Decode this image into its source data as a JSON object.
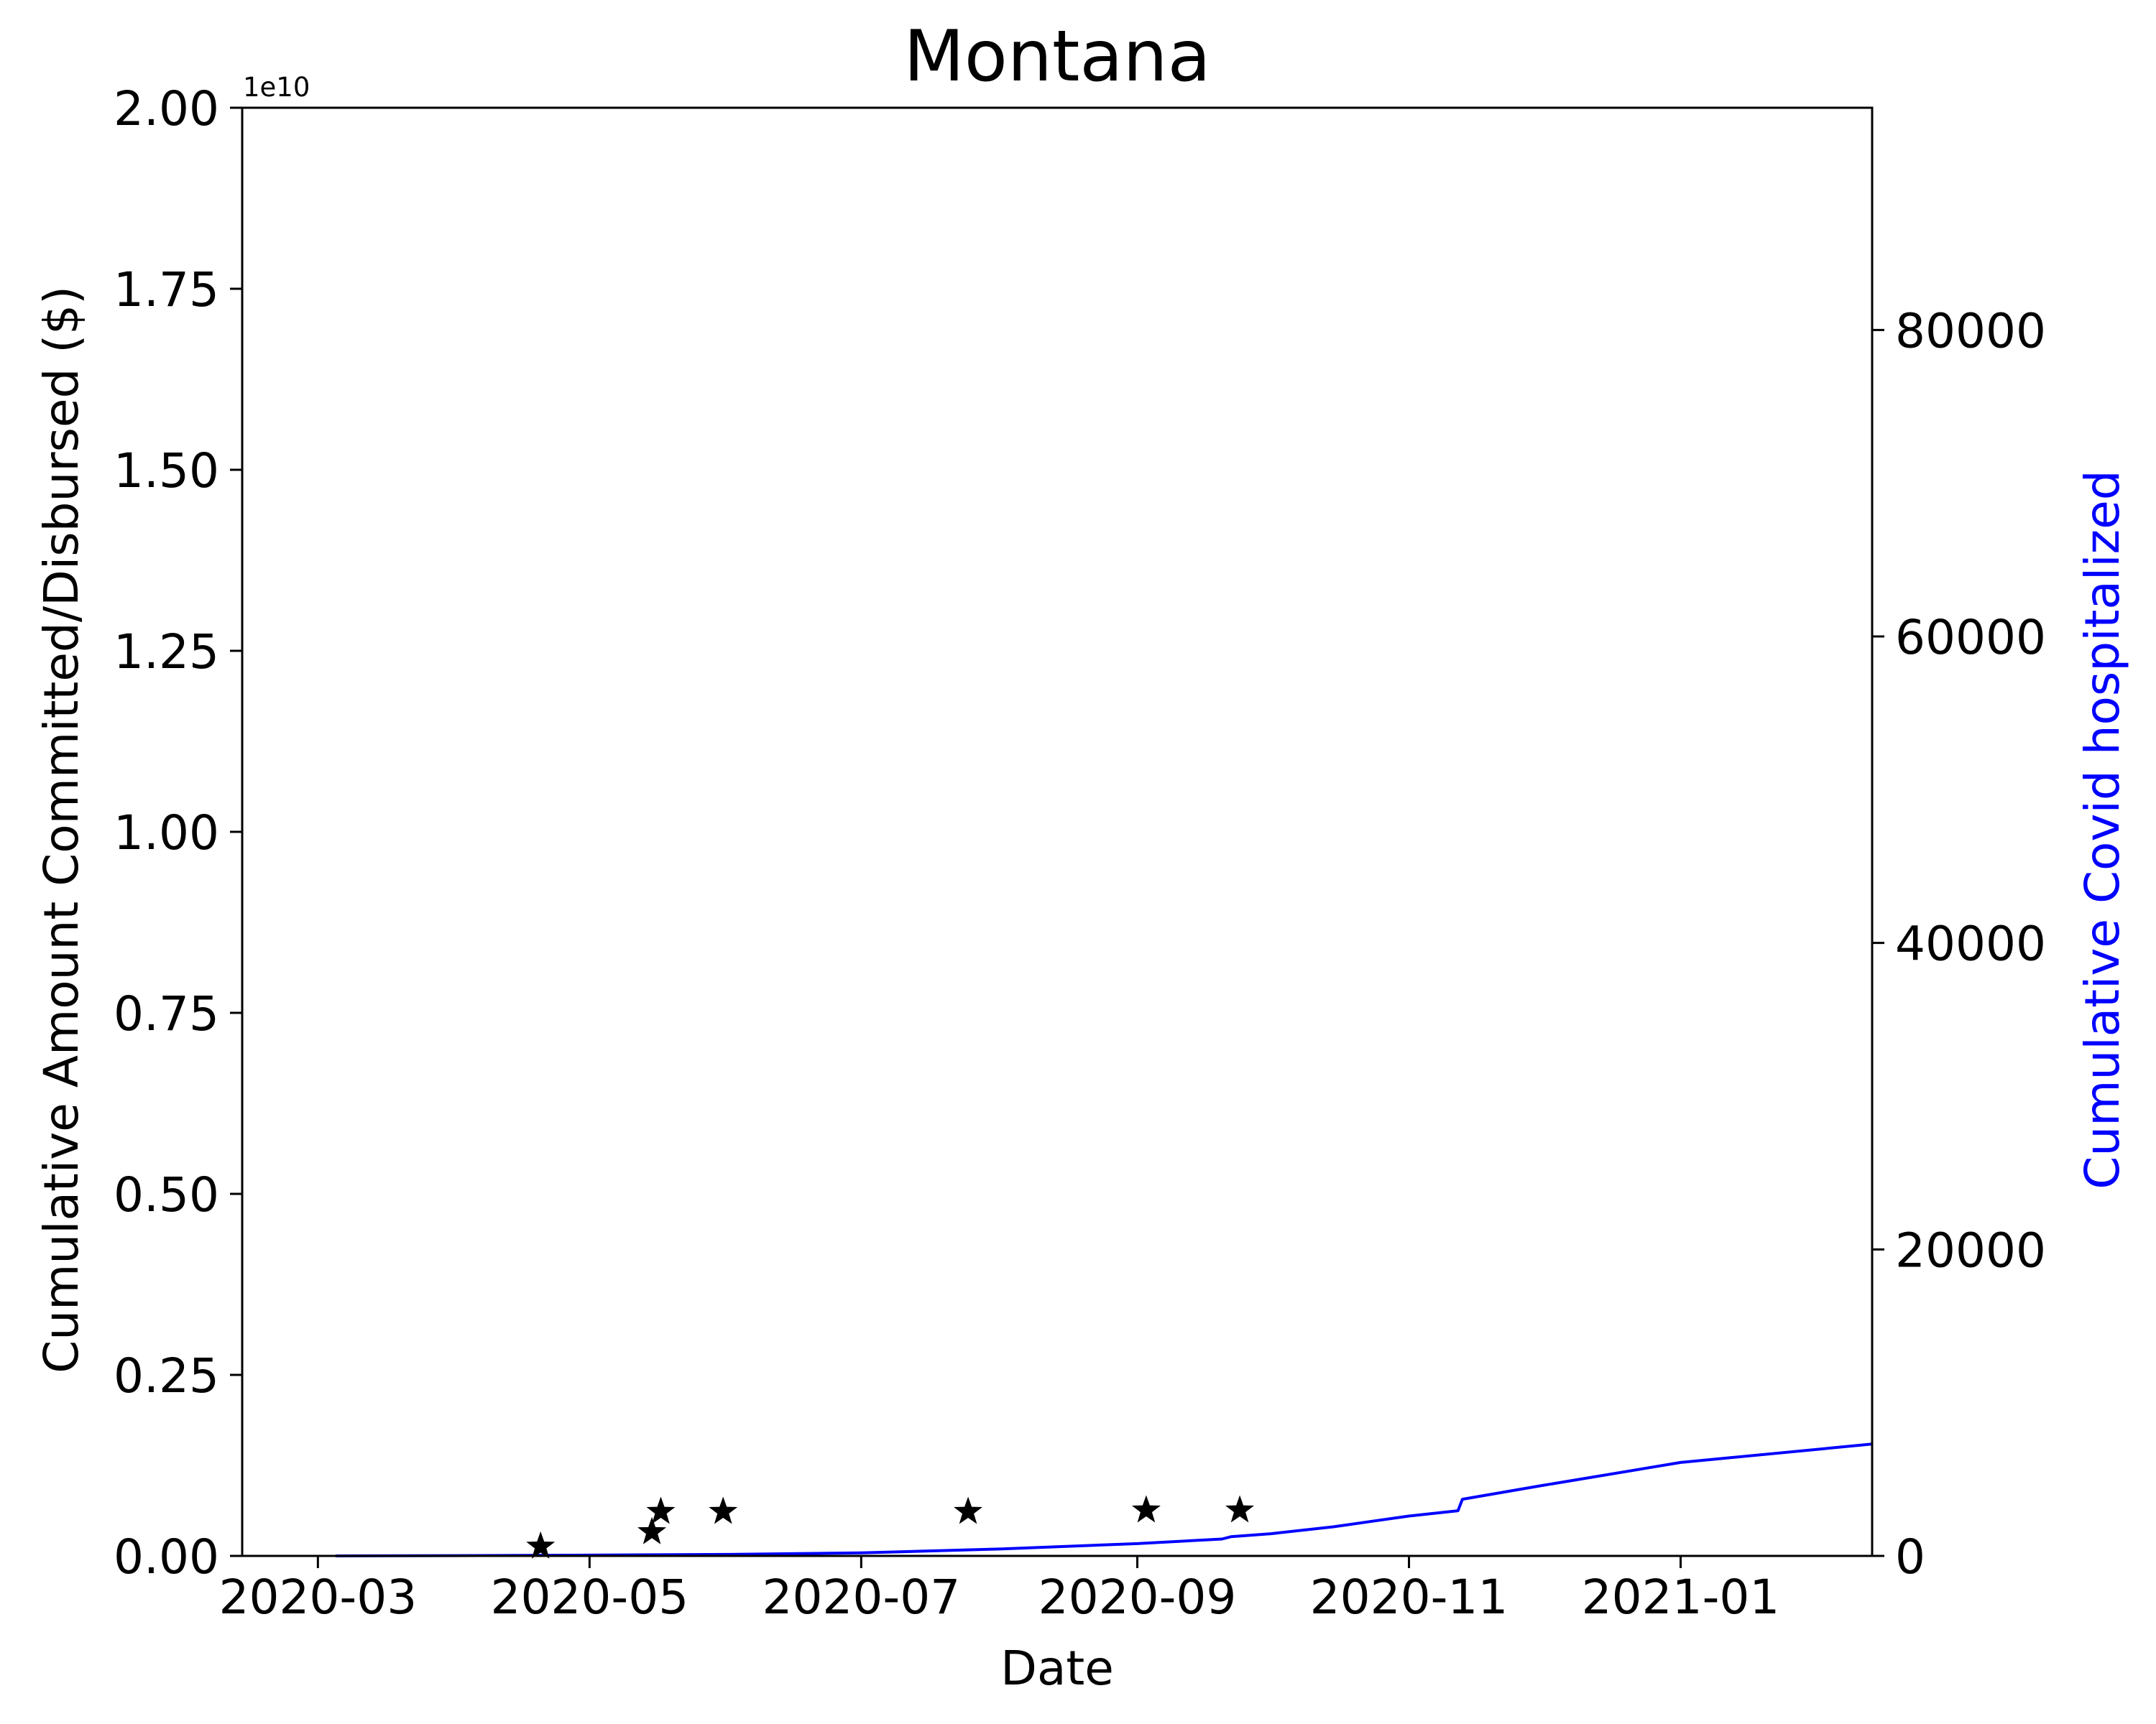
{
  "chart_data": {
    "type": "line",
    "title": "Montana",
    "xlabel": "Date",
    "ylabel": "Cumulative Amount Committed/Disbursed ($)",
    "ylabel_right": "Cumulative Covid hospitalized",
    "y_offset_label": "1e10",
    "xlim": [
      "2020-02-13",
      "2021-02-13"
    ],
    "ylim": [
      0,
      2.0
    ],
    "ylim_right": [
      0,
      94500
    ],
    "x_ticks": [
      {
        "date": "2020-03-01",
        "label": "2020-03"
      },
      {
        "date": "2020-05-01",
        "label": "2020-05"
      },
      {
        "date": "2020-07-01",
        "label": "2020-07"
      },
      {
        "date": "2020-09-01",
        "label": "2020-09"
      },
      {
        "date": "2020-11-01",
        "label": "2020-11"
      },
      {
        "date": "2021-01-01",
        "label": "2021-01"
      }
    ],
    "y_ticks": [
      "0.00",
      "0.25",
      "0.50",
      "0.75",
      "1.00",
      "1.25",
      "1.50",
      "1.75",
      "2.00"
    ],
    "y_ticks_right": [
      "0",
      "20000",
      "40000",
      "60000",
      "80000"
    ],
    "grid": false,
    "legend": "none",
    "series": [
      {
        "axis": "right",
        "color": "#0000ff",
        "mark": "line",
        "points": [
          {
            "x": "2020-03-05",
            "y": 0
          },
          {
            "x": "2020-04-01",
            "y": 20
          },
          {
            "x": "2020-05-01",
            "y": 50
          },
          {
            "x": "2020-06-01",
            "y": 100
          },
          {
            "x": "2020-07-01",
            "y": 200
          },
          {
            "x": "2020-08-01",
            "y": 450
          },
          {
            "x": "2020-09-01",
            "y": 800
          },
          {
            "x": "2020-09-20",
            "y": 1100
          },
          {
            "x": "2020-09-22",
            "y": 1250
          },
          {
            "x": "2020-10-01",
            "y": 1450
          },
          {
            "x": "2020-10-15",
            "y": 1900
          },
          {
            "x": "2020-11-01",
            "y": 2600
          },
          {
            "x": "2020-11-12",
            "y": 2950
          },
          {
            "x": "2020-11-13",
            "y": 3700
          },
          {
            "x": "2020-12-01",
            "y": 4600
          },
          {
            "x": "2021-01-01",
            "y": 6100
          },
          {
            "x": "2021-02-13",
            "y": 7300
          }
        ]
      },
      {
        "axis": "left",
        "color": "#000000",
        "mark": "star",
        "points": [
          {
            "x": "2020-04-20",
            "y": 0.013
          },
          {
            "x": "2020-05-15",
            "y": 0.033
          },
          {
            "x": "2020-05-17",
            "y": 0.061
          },
          {
            "x": "2020-05-31",
            "y": 0.061
          },
          {
            "x": "2020-07-25",
            "y": 0.061
          },
          {
            "x": "2020-09-03",
            "y": 0.063
          },
          {
            "x": "2020-09-24",
            "y": 0.063
          }
        ]
      }
    ]
  }
}
